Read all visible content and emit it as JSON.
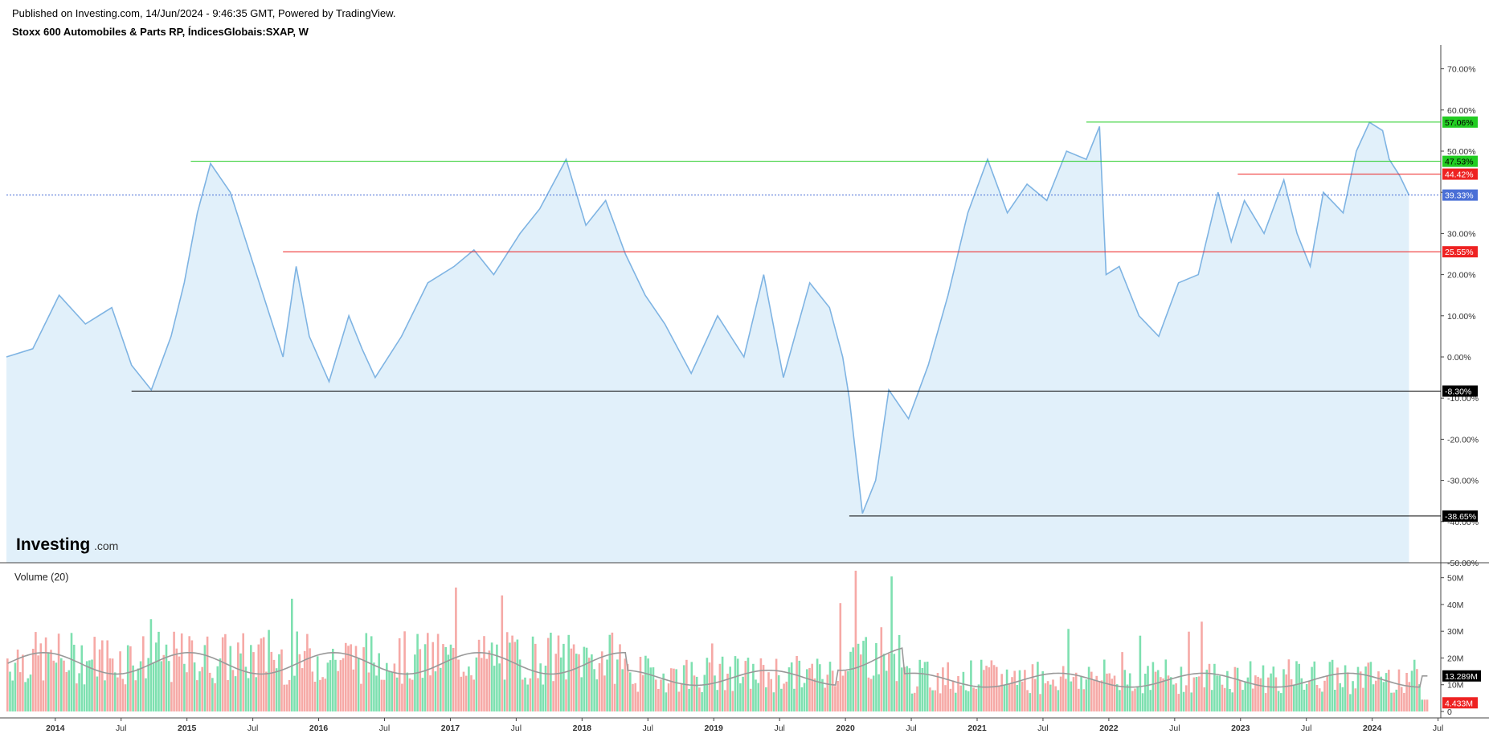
{
  "header": {
    "published": "Published on Investing.com, 14/Jun/2024 - 9:46:35 GMT, Powered by TradingView.",
    "title": "Stoxx 600 Automobiles & Parts RP, ÍndicesGlobais:SXAP, W"
  },
  "logo": {
    "main": "Investing",
    "suffix": ".com"
  },
  "colors": {
    "line": "#7fb4e3",
    "area": "#e1f0fa",
    "up_volume": "#7ee0b0",
    "down_volume": "#f6a9a6",
    "ma_line": "#999999",
    "green_level": "#22cc22",
    "red_level": "#ee2222",
    "black_level": "#000000",
    "current_price": "#4a6fd6"
  },
  "chart_data": [
    {
      "type": "area",
      "title": "Stoxx 600 Automobiles & Parts RP, ÍndicesGlobais:SXAP, W",
      "y_unit": "%",
      "ylim": [
        -50,
        75
      ],
      "y_ticks": [
        "70.00%",
        "60.00%",
        "50.00%",
        "40.00%",
        "30.00%",
        "20.00%",
        "10.00%",
        "0.00%",
        "-10.00%",
        "-20.00%",
        "-30.00%",
        "-40.00%",
        "-50.00%"
      ],
      "x_ticks": [
        "2014",
        "Jul",
        "2015",
        "Jul",
        "2016",
        "Jul",
        "2017",
        "Jul",
        "2018",
        "Jul",
        "2019",
        "Jul",
        "2020",
        "Jul",
        "2021",
        "Jul",
        "2022",
        "Jul",
        "2023",
        "Jul",
        "2024",
        "Jul"
      ],
      "x": [
        2013.8,
        2014.0,
        2014.2,
        2014.4,
        2014.6,
        2014.75,
        2014.9,
        2015.05,
        2015.15,
        2015.25,
        2015.35,
        2015.5,
        2015.65,
        2015.8,
        2015.9,
        2016.0,
        2016.1,
        2016.25,
        2016.4,
        2016.5,
        2016.6,
        2016.8,
        2017.0,
        2017.2,
        2017.35,
        2017.5,
        2017.7,
        2017.85,
        2018.05,
        2018.2,
        2018.35,
        2018.5,
        2018.65,
        2018.8,
        2019.0,
        2019.2,
        2019.4,
        2019.55,
        2019.7,
        2019.9,
        2020.05,
        2020.15,
        2020.2,
        2020.3,
        2020.4,
        2020.5,
        2020.65,
        2020.8,
        2020.95,
        2021.1,
        2021.25,
        2021.4,
        2021.55,
        2021.7,
        2021.85,
        2022.0,
        2022.1,
        2022.15,
        2022.25,
        2022.4,
        2022.55,
        2022.7,
        2022.85,
        2023.0,
        2023.1,
        2023.2,
        2023.35,
        2023.5,
        2023.6,
        2023.7,
        2023.8,
        2023.95,
        2024.05,
        2024.15,
        2024.25,
        2024.3,
        2024.38,
        2024.45
      ],
      "y": [
        0,
        2,
        15,
        8,
        12,
        -2,
        -8,
        5,
        18,
        35,
        47,
        40,
        25,
        10,
        0,
        22,
        5,
        -6,
        10,
        2,
        -5,
        5,
        18,
        22,
        26,
        20,
        30,
        36,
        48,
        32,
        38,
        25,
        15,
        8,
        -4,
        10,
        0,
        20,
        -5,
        18,
        12,
        0,
        -10,
        -38,
        -30,
        -8,
        -15,
        -2,
        15,
        35,
        48,
        35,
        42,
        38,
        50,
        48,
        56,
        20,
        22,
        10,
        5,
        18,
        20,
        40,
        28,
        38,
        30,
        43,
        30,
        22,
        40,
        35,
        50,
        57,
        55,
        48,
        44,
        39.33
      ],
      "levels": [
        {
          "value": 57.06,
          "label": "57.06%",
          "color": "green"
        },
        {
          "value": 47.53,
          "label": "47.53%",
          "color": "green"
        },
        {
          "value": 44.42,
          "label": "44.42%",
          "color": "red"
        },
        {
          "value": 25.55,
          "label": "25.55%",
          "color": "red"
        },
        {
          "value": -8.3,
          "label": "-8.30%",
          "color": "black"
        },
        {
          "value": -38.65,
          "label": "-38.65%",
          "color": "black"
        }
      ],
      "current": {
        "value": 39.33,
        "label": "39.33%"
      }
    },
    {
      "type": "bar",
      "title": "Volume (20)",
      "y_unit": "M",
      "ylim": [
        0,
        52
      ],
      "y_ticks": [
        "50M",
        "40M",
        "30M",
        "20M",
        "10M",
        "0"
      ],
      "ma_label": "13.289M",
      "ma_value": 13.289,
      "last_label": "4.433M",
      "last_value": 4.433
    }
  ]
}
